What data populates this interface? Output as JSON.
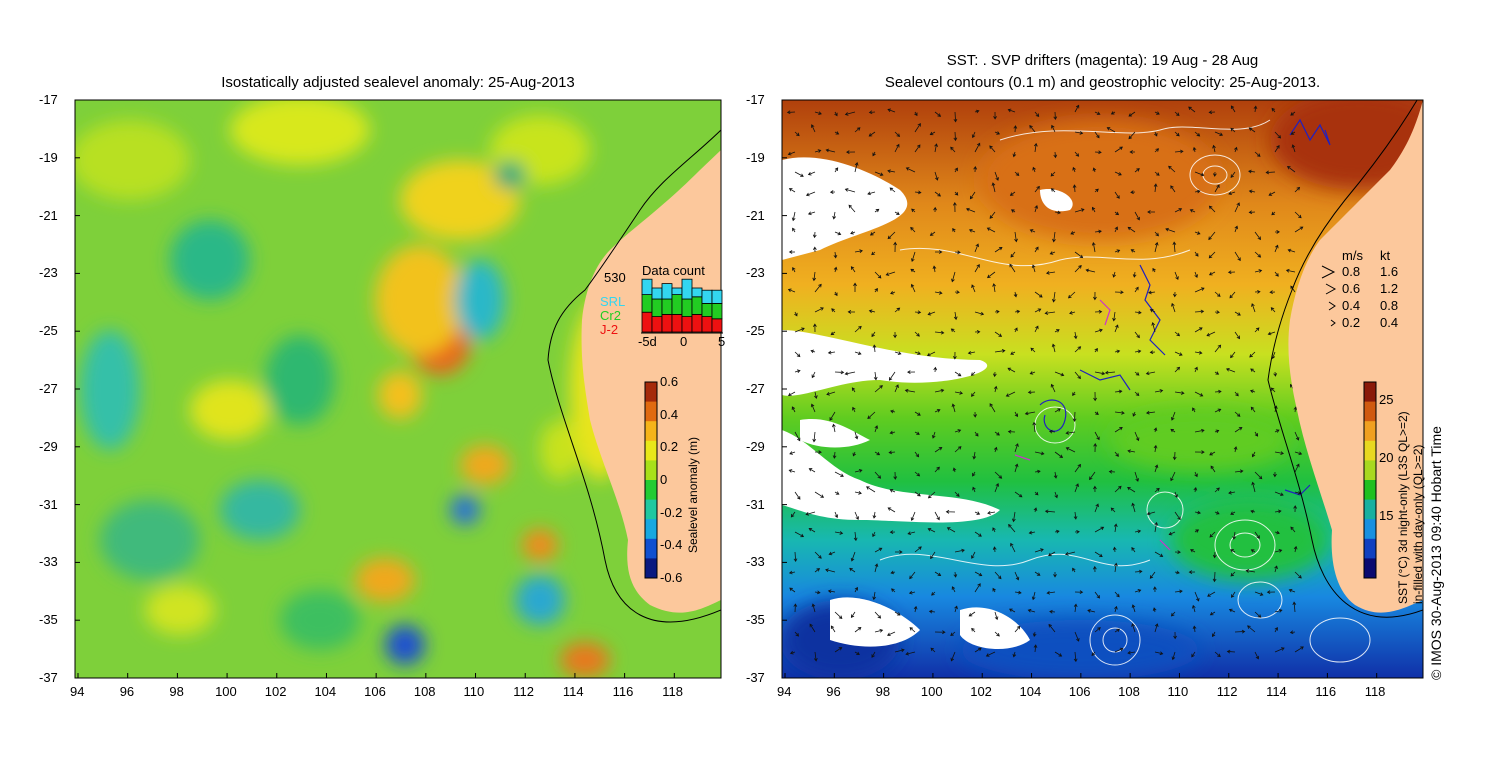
{
  "left_panel": {
    "title": "Isostatically adjusted sealevel anomaly: 25-Aug-2013",
    "x_ticks": [
      "94",
      "96",
      "98",
      "100",
      "102",
      "104",
      "106",
      "108",
      "110",
      "112",
      "114",
      "116",
      "118"
    ],
    "y_ticks": [
      "-17",
      "-19",
      "-21",
      "-23",
      "-25",
      "-27",
      "-29",
      "-31",
      "-33",
      "-35",
      "-37"
    ],
    "data_count": {
      "total": "530",
      "title": "Data count",
      "legend": [
        {
          "label": "SRL",
          "color": "#33d6f0"
        },
        {
          "label": "Cr2",
          "color": "#22cc22"
        },
        {
          "label": "J-2",
          "color": "#ee1111"
        }
      ],
      "axis_labels": [
        "-5d",
        "0",
        "5"
      ],
      "bars": [
        {
          "j2": 9,
          "cr2": 8,
          "srl": 7
        },
        {
          "j2": 7,
          "cr2": 8,
          "srl": 5
        },
        {
          "j2": 8,
          "cr2": 7,
          "srl": 7
        },
        {
          "j2": 8,
          "cr2": 9,
          "srl": 3
        },
        {
          "j2": 7,
          "cr2": 8,
          "srl": 9
        },
        {
          "j2": 8,
          "cr2": 8,
          "srl": 4
        },
        {
          "j2": 7,
          "cr2": 6,
          "srl": 6
        },
        {
          "j2": 6,
          "cr2": 7,
          "srl": 6
        }
      ]
    },
    "colorbar": {
      "label": "Sealevel anomaly (m)",
      "ticks": [
        "0.6",
        "0.4",
        "0.2",
        "0",
        "-0.2",
        "-0.4",
        "-0.6"
      ],
      "colors": [
        "#a52a0a",
        "#e06a10",
        "#f5b41a",
        "#e8e81a",
        "#a8e01a",
        "#22cc33",
        "#20c8a0",
        "#18a8e0",
        "#1050d0",
        "#0a1a80"
      ]
    }
  },
  "right_panel": {
    "title_line1": "SST: . SVP drifters (magenta): 19 Aug - 28 Aug",
    "title_line2": "Sealevel contours (0.1 m) and geostrophic velocity: 25-Aug-2013.",
    "x_ticks": [
      "94",
      "96",
      "98",
      "100",
      "102",
      "104",
      "106",
      "108",
      "110",
      "112",
      "114",
      "116",
      "118"
    ],
    "y_ticks": [
      "-17",
      "-19",
      "-21",
      "-23",
      "-25",
      "-27",
      "-29",
      "-31",
      "-33",
      "-35",
      "-37"
    ],
    "speed_legend": {
      "header_ms": "m/s",
      "header_kt": "kt",
      "rows": [
        {
          "ms": "0.8",
          "kt": "1.6"
        },
        {
          "ms": "0.6",
          "kt": "1.2"
        },
        {
          "ms": "0.4",
          "kt": "0.8"
        },
        {
          "ms": "0.2",
          "kt": "0.4"
        }
      ]
    },
    "colorbar": {
      "label_line1": "SST (°C) 3d night-only (L3S QL>=2)",
      "label_line2": "in-filled with day-only (QL>=2)",
      "ticks": [
        "25",
        "20",
        "15"
      ],
      "colors": [
        "#8a1a0a",
        "#d05a10",
        "#f0a020",
        "#e8d820",
        "#a8d820",
        "#20c020",
        "#18b0a0",
        "#1890e0",
        "#1040c0",
        "#0a0a70"
      ]
    },
    "credit": "© IMOS 30-Aug-2013 09:40 Hobart Time"
  },
  "colors": {
    "land": "#fcc89c",
    "coast": "#000000",
    "cloud": "#ffffff",
    "magenta": "#cc33cc",
    "contour": "#ffffff"
  }
}
